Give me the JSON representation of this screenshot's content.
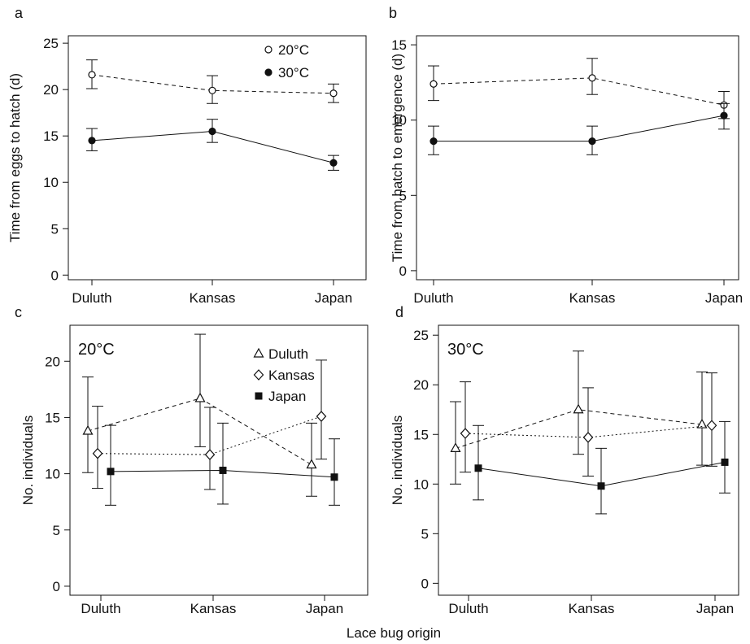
{
  "figure": {
    "shared_xlabel": "Lace bug origin"
  },
  "chart_data": [
    {
      "id": "a",
      "panel_letter": "a",
      "type": "line",
      "categories": [
        "Duluth",
        "Kansas",
        "Japan"
      ],
      "ylabel": "Time from eggs to hatch (d)",
      "xlabel": "",
      "ylim": [
        -0.5,
        25.8
      ],
      "yticks": [
        0,
        5,
        10,
        15,
        20,
        25
      ],
      "grid": false,
      "legend": "top-right",
      "series": [
        {
          "name": "20°C",
          "marker": "circle-open",
          "line": "dashed",
          "values": [
            21.6,
            19.9,
            19.6
          ],
          "err_low": [
            20.1,
            18.5,
            18.6
          ],
          "err_high": [
            23.2,
            21.5,
            20.6
          ]
        },
        {
          "name": "30°C",
          "marker": "circle-filled",
          "line": "solid",
          "values": [
            14.5,
            15.5,
            12.1
          ],
          "err_low": [
            13.4,
            14.3,
            11.3
          ],
          "err_high": [
            15.8,
            16.8,
            12.9
          ]
        }
      ]
    },
    {
      "id": "b",
      "panel_letter": "b",
      "type": "line",
      "categories": [
        "Duluth",
        "Kansas",
        "Japan"
      ],
      "ylabel": "Time from hatch to emergence (d)",
      "xlabel": "",
      "ylim": [
        -0.6,
        15.6
      ],
      "yticks": [
        0,
        5,
        10,
        15
      ],
      "grid": false,
      "series": [
        {
          "name": "20°C",
          "marker": "circle-open",
          "line": "dashed",
          "values": [
            12.4,
            12.8,
            11.0
          ],
          "err_low": [
            11.3,
            11.7,
            10.1
          ],
          "err_high": [
            13.6,
            14.1,
            11.9
          ]
        },
        {
          "name": "30°C",
          "marker": "circle-filled",
          "line": "solid",
          "values": [
            8.6,
            8.6,
            10.3
          ],
          "err_low": [
            7.7,
            7.7,
            9.4
          ],
          "err_high": [
            9.6,
            9.6,
            11.1
          ]
        }
      ]
    },
    {
      "id": "c",
      "panel_letter": "c",
      "inset_label": "20°C",
      "type": "line",
      "categories": [
        "Duluth",
        "Kansas",
        "Japan"
      ],
      "ylabel": "No. individuals",
      "xlabel": "",
      "ylim": [
        -0.8,
        23.2
      ],
      "yticks": [
        0,
        5,
        10,
        15,
        20
      ],
      "grid": false,
      "legend": "top-right",
      "series": [
        {
          "name": "Duluth",
          "marker": "triangle-open",
          "line": "dashed",
          "values": [
            13.8,
            16.7,
            10.8
          ],
          "err_low": [
            10.1,
            12.4,
            8.0
          ],
          "err_high": [
            18.6,
            22.4,
            14.5
          ]
        },
        {
          "name": "Kansas",
          "marker": "diamond-open",
          "line": "dotted",
          "values": [
            11.8,
            11.7,
            15.1
          ],
          "err_low": [
            8.7,
            8.6,
            11.3
          ],
          "err_high": [
            16.0,
            15.9,
            20.1
          ]
        },
        {
          "name": "Japan",
          "marker": "square-filled",
          "line": "solid",
          "values": [
            10.2,
            10.3,
            9.7
          ],
          "err_low": [
            7.2,
            7.3,
            7.2
          ],
          "err_high": [
            14.3,
            14.5,
            13.1
          ]
        }
      ]
    },
    {
      "id": "d",
      "panel_letter": "d",
      "inset_label": "30°C",
      "type": "line",
      "categories": [
        "Duluth",
        "Kansas",
        "Japan"
      ],
      "ylabel": "No. individuals",
      "xlabel": "",
      "ylim": [
        -1.2,
        26.0
      ],
      "yticks": [
        0,
        5,
        10,
        15,
        20,
        25
      ],
      "grid": false,
      "series": [
        {
          "name": "Duluth",
          "marker": "triangle-open",
          "line": "dashed",
          "values": [
            13.6,
            17.5,
            16.0
          ],
          "err_low": [
            10.0,
            13.0,
            11.9
          ],
          "err_high": [
            18.3,
            23.4,
            21.3
          ]
        },
        {
          "name": "Kansas",
          "marker": "diamond-open",
          "line": "dotted",
          "values": [
            15.1,
            14.7,
            15.9
          ],
          "err_low": [
            11.2,
            10.8,
            11.8
          ],
          "err_high": [
            20.3,
            19.7,
            21.2
          ]
        },
        {
          "name": "Japan",
          "marker": "square-filled",
          "line": "solid",
          "values": [
            11.6,
            9.8,
            12.2
          ],
          "err_low": [
            8.4,
            7.0,
            9.1
          ],
          "err_high": [
            15.9,
            13.6,
            16.3
          ]
        }
      ]
    }
  ]
}
